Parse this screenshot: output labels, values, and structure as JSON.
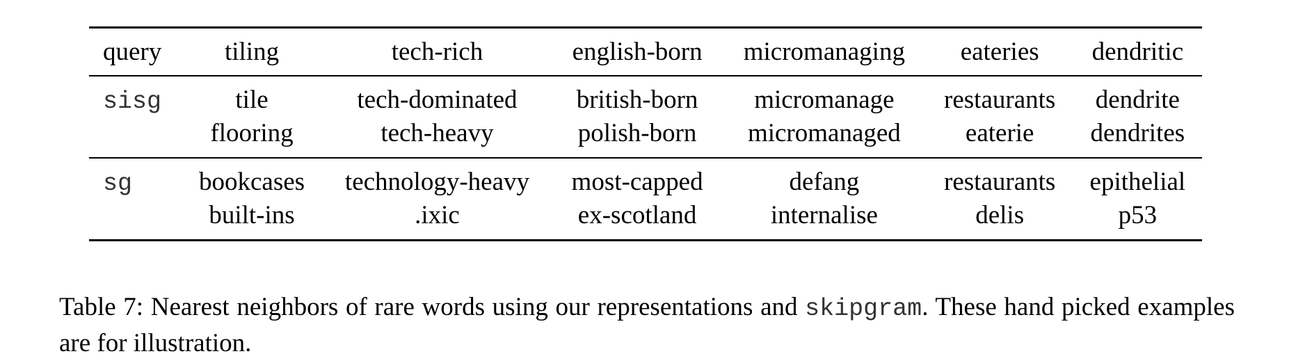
{
  "table": {
    "headers": [
      "query",
      "tiling",
      "tech-rich",
      "english-born",
      "micromanaging",
      "eateries",
      "dendritic"
    ],
    "rows": [
      {
        "label": "sisg",
        "cells": [
          [
            "tile",
            "flooring"
          ],
          [
            "tech-dominated",
            "tech-heavy"
          ],
          [
            "british-born",
            "polish-born"
          ],
          [
            "micromanage",
            "micromanaged"
          ],
          [
            "restaurants",
            "eaterie"
          ],
          [
            "dendrite",
            "dendrites"
          ]
        ]
      },
      {
        "label": "sg",
        "cells": [
          [
            "bookcases",
            "built-ins"
          ],
          [
            "technology-heavy",
            ".ixic"
          ],
          [
            "most-capped",
            "ex-scotland"
          ],
          [
            "defang",
            "internalise"
          ],
          [
            "restaurants",
            "delis"
          ],
          [
            "epithelial",
            "p53"
          ]
        ]
      }
    ]
  },
  "caption": {
    "prefix": "Table 7: Nearest neighbors of rare words using our representations and ",
    "code": "skipgram",
    "suffix": ". These hand picked examples are for illustration."
  }
}
